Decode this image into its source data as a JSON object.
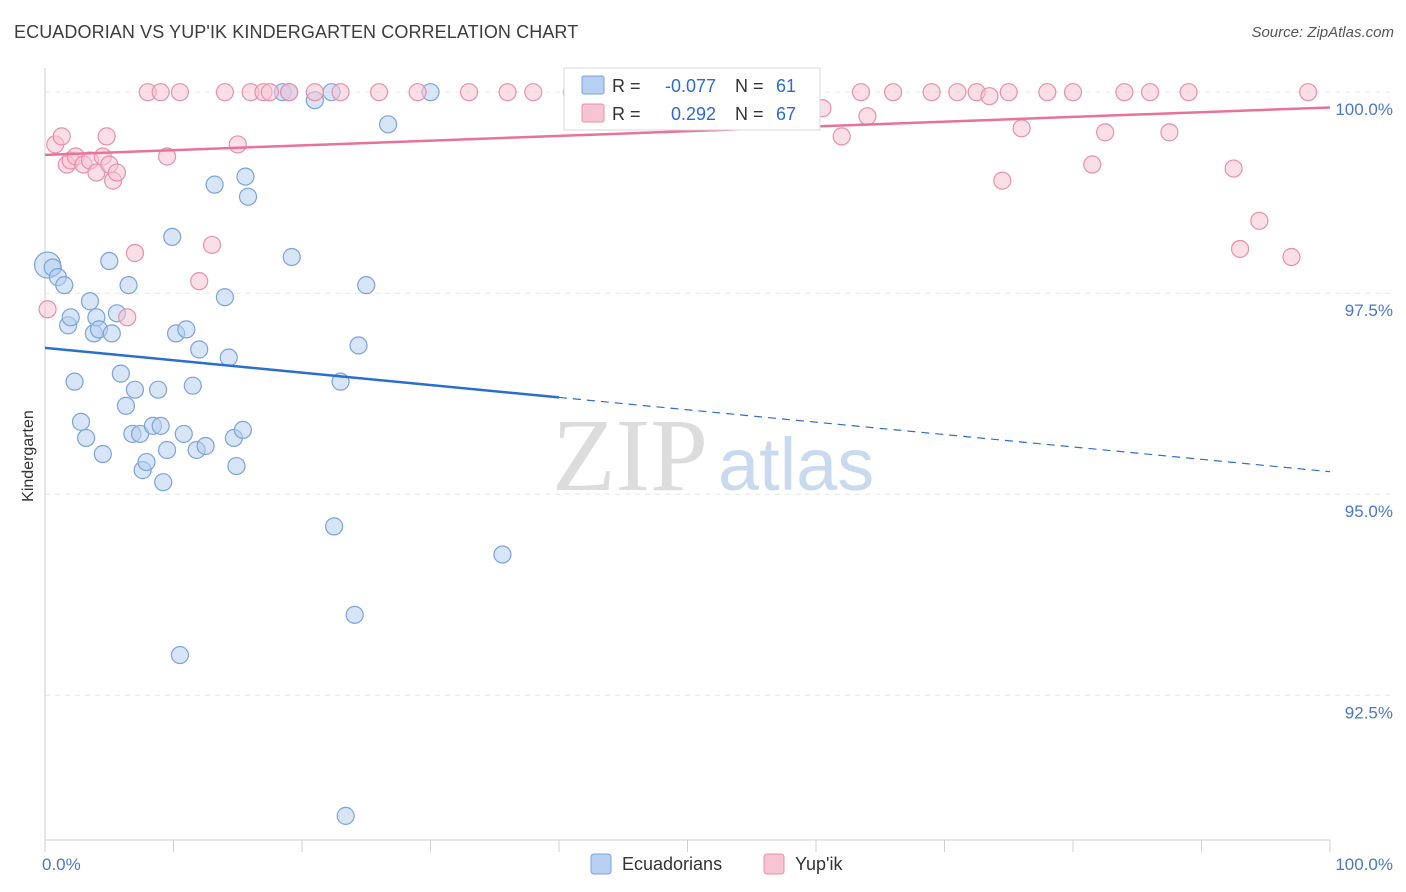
{
  "title": "ECUADORIAN VS YUP'IK KINDERGARTEN CORRELATION CHART",
  "source": "Source: ZipAtlas.com",
  "watermark": {
    "zip": "ZIP",
    "atlas": "atlas"
  },
  "colors": {
    "blue_fill": "#b7cff0",
    "blue_stroke": "#7aa3dc",
    "blue_line": "#2a6fd0",
    "pink_fill": "#f6c4d3",
    "pink_stroke": "#e88fab",
    "pink_line": "#e8729a",
    "tick_text": "#4a78c8",
    "grid": "#e6e6e6"
  },
  "legend": {
    "rows": [
      {
        "r_label": "R =",
        "r_value": "-0.077",
        "n_label": "N =",
        "n_value": "61",
        "series": "Ecuadorians"
      },
      {
        "r_label": "R =",
        "r_value": "0.292",
        "n_label": "N =",
        "n_value": "67",
        "series": "Yup'ik"
      }
    ]
  },
  "chart_data": {
    "type": "scatter",
    "title": "ECUADORIAN VS YUP'IK KINDERGARTEN CORRELATION CHART",
    "xlabel": "",
    "ylabel": "Kindergarten",
    "xlim": [
      0,
      100
    ],
    "ylim": [
      90.7,
      100.4
    ],
    "x_tick_labels": [
      "0.0%",
      "100.0%"
    ],
    "y_ticks": [
      92.5,
      95.0,
      97.5,
      100.0
    ],
    "y_tick_labels": [
      "92.5%",
      "95.0%",
      "97.5%",
      "100.0%"
    ],
    "legend_position": "top-center",
    "series": [
      {
        "name": "Ecuadorians",
        "r": -0.077,
        "n": 61,
        "trend": {
          "x0": 0,
          "y0": 96.82,
          "x_solid_end": 40,
          "x1": 100,
          "y1": 95.28
        },
        "points": [
          [
            0.2,
            97.85
          ],
          [
            0.6,
            97.82
          ],
          [
            1.0,
            97.7
          ],
          [
            1.5,
            97.6
          ],
          [
            1.8,
            97.1
          ],
          [
            2.0,
            97.2
          ],
          [
            2.3,
            96.4
          ],
          [
            2.8,
            95.9
          ],
          [
            3.2,
            95.7
          ],
          [
            3.5,
            97.4
          ],
          [
            3.8,
            97.0
          ],
          [
            4.0,
            97.2
          ],
          [
            4.2,
            97.05
          ],
          [
            4.5,
            95.5
          ],
          [
            5.0,
            97.9
          ],
          [
            5.2,
            97.0
          ],
          [
            5.6,
            97.25
          ],
          [
            5.9,
            96.5
          ],
          [
            6.3,
            96.1
          ],
          [
            6.5,
            97.6
          ],
          [
            6.8,
            95.75
          ],
          [
            7.0,
            96.3
          ],
          [
            7.4,
            95.75
          ],
          [
            7.6,
            95.3
          ],
          [
            7.9,
            95.4
          ],
          [
            8.4,
            95.85
          ],
          [
            8.8,
            96.3
          ],
          [
            9.0,
            95.85
          ],
          [
            9.2,
            95.15
          ],
          [
            9.5,
            95.55
          ],
          [
            9.9,
            98.2
          ],
          [
            10.2,
            97.0
          ],
          [
            10.5,
            93.0
          ],
          [
            10.8,
            95.75
          ],
          [
            11.0,
            97.05
          ],
          [
            11.5,
            96.35
          ],
          [
            11.8,
            95.55
          ],
          [
            12.0,
            96.8
          ],
          [
            12.5,
            95.6
          ],
          [
            13.2,
            98.85
          ],
          [
            14.0,
            97.45
          ],
          [
            14.3,
            96.7
          ],
          [
            14.7,
            95.7
          ],
          [
            14.9,
            95.35
          ],
          [
            15.4,
            95.8
          ],
          [
            15.6,
            98.95
          ],
          [
            15.8,
            98.7
          ],
          [
            18.5,
            100.0
          ],
          [
            19.0,
            100.0
          ],
          [
            19.2,
            97.95
          ],
          [
            21.0,
            99.9
          ],
          [
            22.3,
            100.0
          ],
          [
            22.5,
            94.6
          ],
          [
            23.0,
            96.4
          ],
          [
            23.4,
            91.0
          ],
          [
            24.1,
            93.5
          ],
          [
            24.4,
            96.85
          ],
          [
            25.0,
            97.6
          ],
          [
            26.7,
            99.6
          ],
          [
            30.0,
            100.0
          ],
          [
            35.6,
            94.25
          ]
        ]
      },
      {
        "name": "Yup'ik",
        "r": 0.292,
        "n": 67,
        "trend": {
          "x0": 0,
          "y0": 99.22,
          "x1": 100,
          "y1": 99.81
        },
        "points": [
          [
            0.2,
            97.3
          ],
          [
            0.8,
            99.35
          ],
          [
            1.3,
            99.45
          ],
          [
            1.7,
            99.1
          ],
          [
            2.0,
            99.15
          ],
          [
            2.4,
            99.2
          ],
          [
            3.0,
            99.1
          ],
          [
            3.5,
            99.15
          ],
          [
            4.0,
            99.0
          ],
          [
            4.5,
            99.2
          ],
          [
            4.8,
            99.45
          ],
          [
            5.0,
            99.1
          ],
          [
            5.3,
            98.9
          ],
          [
            5.6,
            99.0
          ],
          [
            6.4,
            97.2
          ],
          [
            7.0,
            98.0
          ],
          [
            8.0,
            100.0
          ],
          [
            9.0,
            100.0
          ],
          [
            9.5,
            99.2
          ],
          [
            10.5,
            100.0
          ],
          [
            12.0,
            97.65
          ],
          [
            13.0,
            98.1
          ],
          [
            14.0,
            100.0
          ],
          [
            15.0,
            99.35
          ],
          [
            16.0,
            100.0
          ],
          [
            17.0,
            100.0
          ],
          [
            17.5,
            100.0
          ],
          [
            19.0,
            100.0
          ],
          [
            21.0,
            100.0
          ],
          [
            23.0,
            100.0
          ],
          [
            26.0,
            100.0
          ],
          [
            29.0,
            100.0
          ],
          [
            33.0,
            100.0
          ],
          [
            36.0,
            100.0
          ],
          [
            38.0,
            100.0
          ],
          [
            41.0,
            100.0
          ],
          [
            44.0,
            100.0
          ],
          [
            47.0,
            100.0
          ],
          [
            52.0,
            100.0
          ],
          [
            56.0,
            100.0
          ],
          [
            58.0,
            100.0
          ],
          [
            59.5,
            100.0
          ],
          [
            60.5,
            99.8
          ],
          [
            62.0,
            99.45
          ],
          [
            63.5,
            100.0
          ],
          [
            64.0,
            99.7
          ],
          [
            66.0,
            100.0
          ],
          [
            69.0,
            100.0
          ],
          [
            71.0,
            100.0
          ],
          [
            72.5,
            100.0
          ],
          [
            73.5,
            99.95
          ],
          [
            74.5,
            98.9
          ],
          [
            75.0,
            100.0
          ],
          [
            76.0,
            99.55
          ],
          [
            78.0,
            100.0
          ],
          [
            80.0,
            100.0
          ],
          [
            81.5,
            99.1
          ],
          [
            82.5,
            99.5
          ],
          [
            84.0,
            100.0
          ],
          [
            86.0,
            100.0
          ],
          [
            87.5,
            99.5
          ],
          [
            89.0,
            100.0
          ],
          [
            92.5,
            99.05
          ],
          [
            93.0,
            98.05
          ],
          [
            94.5,
            98.4
          ],
          [
            97.0,
            97.95
          ],
          [
            98.3,
            100.0
          ]
        ]
      }
    ]
  }
}
